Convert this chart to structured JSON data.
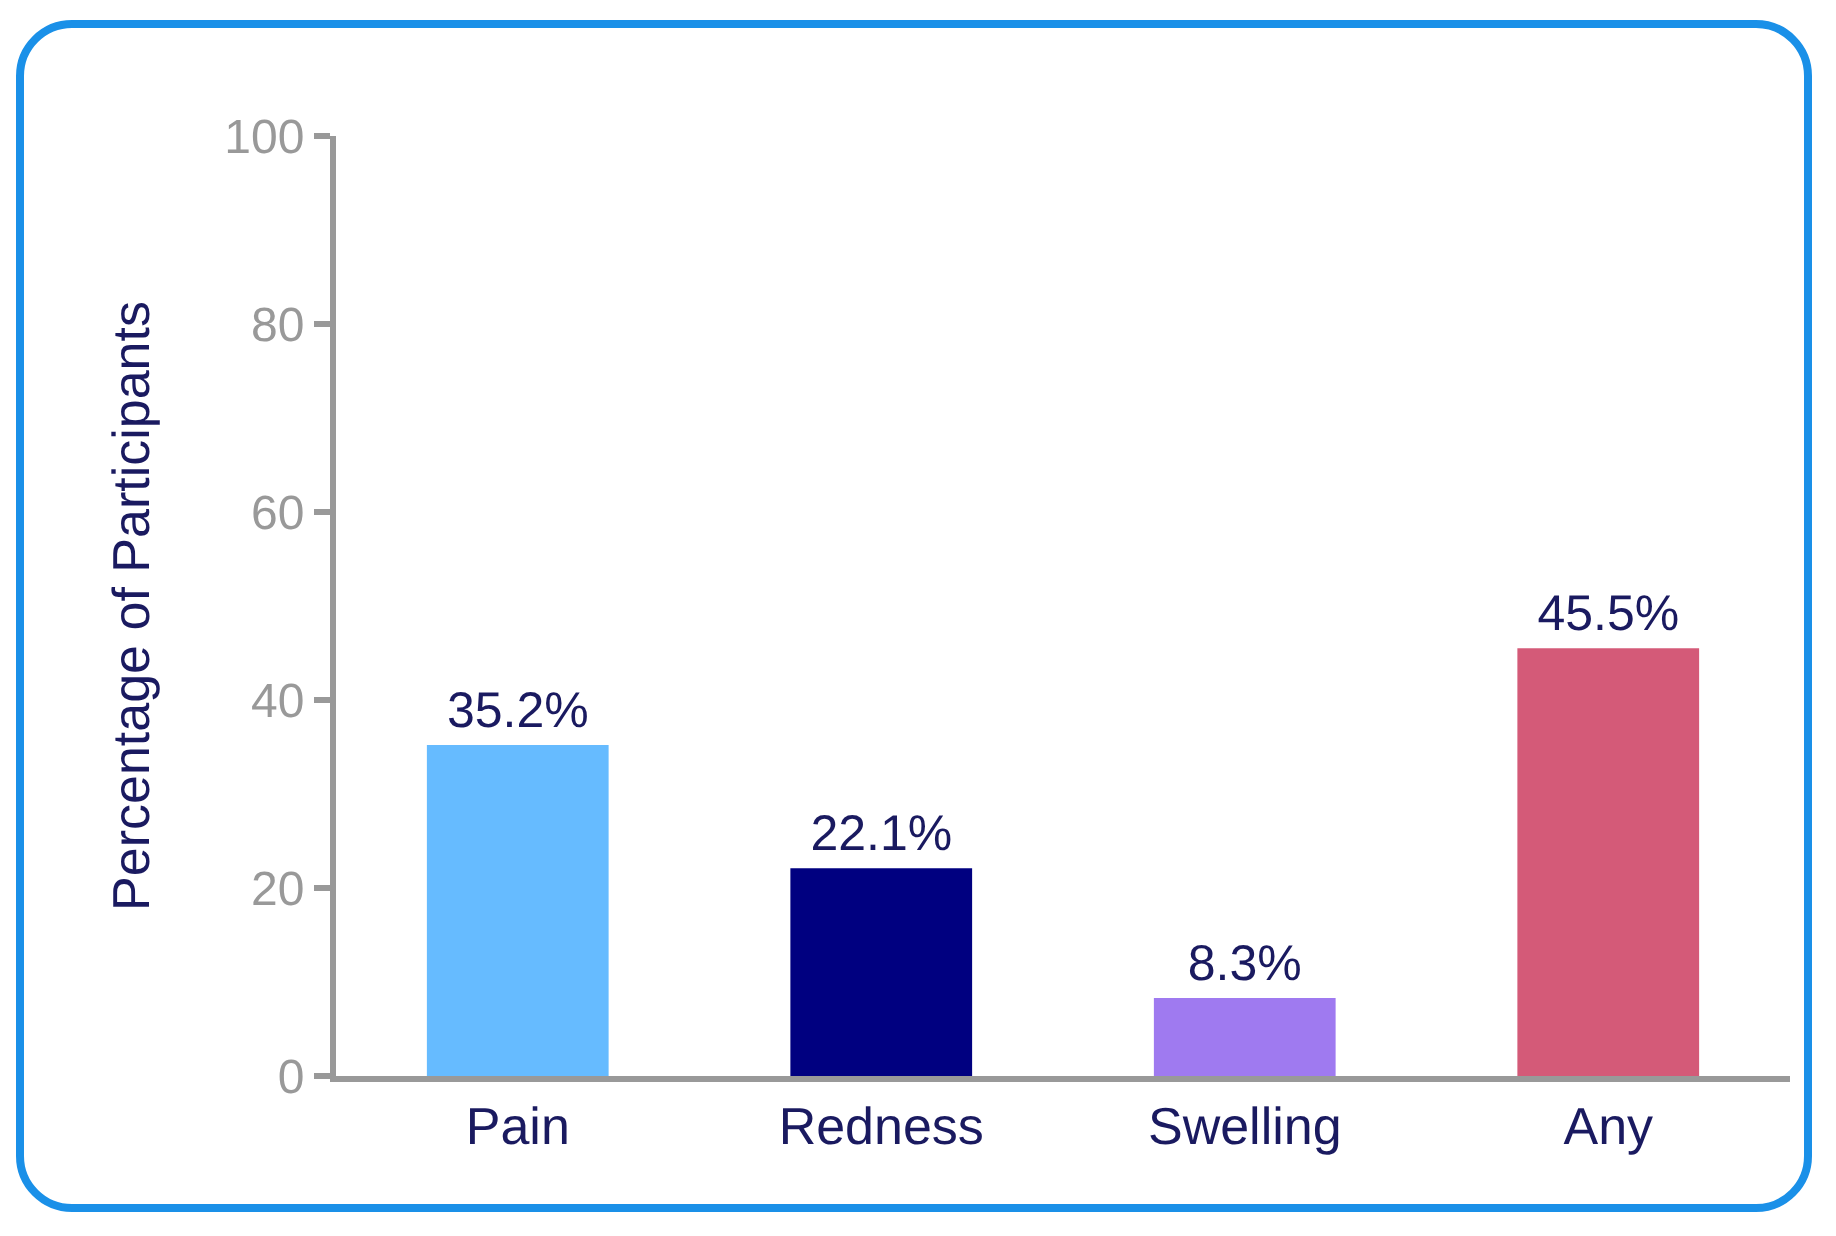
{
  "chart_data": {
    "type": "bar",
    "ylabel": "Percentage of Participants",
    "categories": [
      "Pain",
      "Redness",
      "Swelling",
      "Any"
    ],
    "values": [
      35.2,
      22.1,
      8.3,
      45.5
    ],
    "colors": [
      "#66bbff",
      "#000080",
      "#9f7af0",
      "#d45a78"
    ],
    "value_labels": [
      "35.2%",
      "22.1%",
      "8.3%",
      "45.5%"
    ],
    "ylim": [
      0,
      100
    ],
    "yticks": [
      0,
      20,
      40,
      60,
      80,
      100
    ],
    "grid": false,
    "legend": false
  }
}
